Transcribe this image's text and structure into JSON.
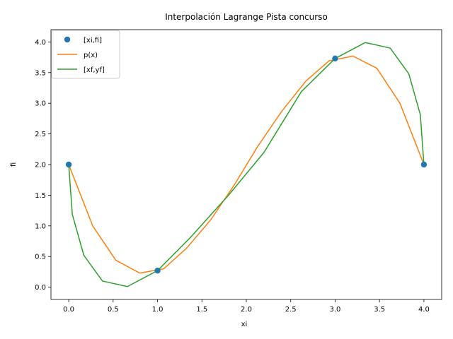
{
  "chart_data": {
    "type": "line",
    "title": "Interpolación Lagrange Pista concurso",
    "xlabel": "xi",
    "ylabel": "fi",
    "xlim": [
      -0.2,
      4.2
    ],
    "ylim": [
      -0.2,
      4.2
    ],
    "x_ticks": [
      0.0,
      0.5,
      1.0,
      1.5,
      2.0,
      2.5,
      3.0,
      3.5,
      4.0
    ],
    "x_tick_labels": [
      "0.0",
      "0.5",
      "1.0",
      "1.5",
      "2.0",
      "2.5",
      "3.0",
      "3.5",
      "4.0"
    ],
    "y_ticks": [
      0.0,
      0.5,
      1.0,
      1.5,
      2.0,
      2.5,
      3.0,
      3.5,
      4.0
    ],
    "y_tick_labels": [
      "0.0",
      "0.5",
      "1.0",
      "1.5",
      "2.0",
      "2.5",
      "3.0",
      "3.5",
      "4.0"
    ],
    "grid": false,
    "legend_position": "top-left",
    "series": [
      {
        "name": "[xi,fi]",
        "kind": "markers",
        "color": "#1f77b4",
        "x": [
          0.0,
          1.0,
          3.0,
          4.0
        ],
        "y": [
          2.0,
          0.27,
          3.73,
          2.0
        ]
      },
      {
        "name": "p(x)",
        "kind": "line",
        "color": "#ff7f0e",
        "x": [
          0.0,
          0.27,
          0.53,
          0.8,
          1.07,
          1.33,
          1.6,
          1.87,
          2.13,
          2.4,
          2.67,
          2.93,
          3.2,
          3.47,
          3.73,
          4.0
        ],
        "y": [
          2.0,
          1.0,
          0.44,
          0.23,
          0.3,
          0.64,
          1.1,
          1.68,
          2.3,
          2.87,
          3.36,
          3.69,
          3.77,
          3.57,
          3.0,
          2.0
        ]
      },
      {
        "name": "[xf,yf]",
        "kind": "line",
        "color": "#2ca02c",
        "x": [
          0.0,
          0.04,
          0.17,
          0.38,
          0.66,
          1.0,
          1.37,
          1.8,
          2.2,
          2.62,
          3.0,
          3.34,
          3.62,
          3.83,
          3.96,
          4.0
        ],
        "y": [
          2.0,
          1.19,
          0.52,
          0.1,
          0.01,
          0.27,
          0.81,
          1.5,
          2.2,
          3.19,
          3.73,
          3.99,
          3.9,
          3.48,
          2.81,
          2.0
        ]
      }
    ]
  }
}
